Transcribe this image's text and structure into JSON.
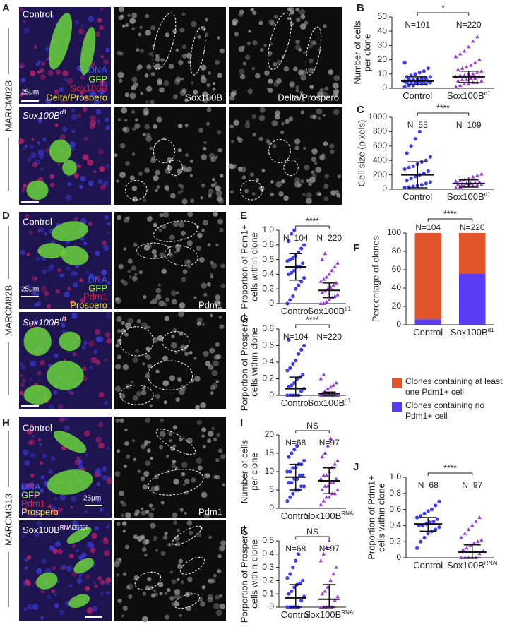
{
  "figure": {
    "letters": [
      "A",
      "B",
      "C",
      "D",
      "E",
      "F",
      "G",
      "H",
      "I",
      "J",
      "K"
    ],
    "A": {
      "genotype_label": "MARCM82B",
      "control": "Control",
      "mutant": "Sox100B",
      "mutant_sup": "d1",
      "legend": [
        "DNA",
        "GFP",
        "Sox100B",
        "Delta/Prospero"
      ],
      "scale": "25μm",
      "channels": [
        "Sox100B",
        "Delta/Prospero"
      ]
    },
    "D": {
      "genotype_label": "MARCM82B",
      "control": "Control",
      "mutant": "Sox100B",
      "mutant_sup": "d1",
      "legend": [
        "DNA",
        "GFP",
        "Pdm1",
        "Prospero"
      ],
      "scale": "25μm",
      "channels": [
        "Pdm1"
      ]
    },
    "H": {
      "genotype_label": "MARCMG13",
      "control": "Control",
      "mutant": "Sox100B",
      "mutant_sup": "RNAi35656",
      "legend": [
        "DNA",
        "GFP",
        "Pdm1",
        "Prospero"
      ],
      "scale": "25μm",
      "channels": [
        "Pdm1"
      ]
    }
  },
  "chart_data": [
    {
      "type": "dot",
      "ylabel": [
        "Number of cells",
        "per clone"
      ],
      "categories": [
        "Control",
        "Sox100B"
      ],
      "sup_labels": [
        null,
        "d1"
      ],
      "ylim": [
        0,
        50
      ],
      "yticks": [
        0,
        10,
        20,
        30,
        40,
        50
      ],
      "significance": "*",
      "groups": [
        {
          "n_label": "N=101",
          "color": "#3c3cf0",
          "mean": 5,
          "error": [
            2.5,
            8
          ],
          "values": [
            1,
            2,
            2,
            3,
            3,
            3,
            4,
            4,
            4,
            4,
            5,
            5,
            5,
            5,
            6,
            6,
            6,
            7,
            7,
            8,
            8,
            9,
            10,
            11,
            12,
            14,
            18
          ]
        },
        {
          "n_label": "N=220",
          "color": "#9b3bd8",
          "mean": 8,
          "error": [
            4,
            12
          ],
          "values": [
            1,
            2,
            3,
            3,
            4,
            4,
            5,
            5,
            6,
            6,
            7,
            7,
            8,
            8,
            9,
            9,
            10,
            10,
            11,
            12,
            13,
            14,
            15,
            16,
            18,
            20,
            22,
            24,
            26,
            29,
            33,
            36
          ]
        }
      ]
    },
    {
      "type": "dot",
      "ylabel": [
        "Cell size (pixels)"
      ],
      "categories": [
        "Control",
        "Sox100B"
      ],
      "sup_labels": [
        null,
        "d1"
      ],
      "ylim": [
        0,
        1000
      ],
      "yticks": [
        0,
        200,
        400,
        600,
        800,
        1000
      ],
      "significance": "****",
      "groups": [
        {
          "n_label": "N=55",
          "color": "#3c3cf0",
          "mean": 200,
          "error": [
            20,
            380
          ],
          "values": [
            20,
            30,
            40,
            50,
            60,
            80,
            100,
            120,
            150,
            180,
            200,
            220,
            250,
            280,
            300,
            320,
            350,
            380,
            400,
            450,
            500,
            600,
            700,
            800
          ]
        },
        {
          "n_label": "N=109",
          "color": "#9b3bd8",
          "mean": 80,
          "error": [
            30,
            130
          ],
          "values": [
            20,
            30,
            40,
            50,
            50,
            60,
            60,
            70,
            70,
            80,
            80,
            90,
            100,
            110,
            120,
            130,
            150,
            170,
            190,
            210
          ]
        }
      ]
    },
    {
      "type": "dot",
      "ylabel": [
        "Proportion of Pdm1+",
        "cells within clone"
      ],
      "categories": [
        "Control",
        "Sox100B"
      ],
      "sup_labels": [
        null,
        "d1"
      ],
      "ylim": [
        0,
        1
      ],
      "yticks": [
        0,
        0.2,
        0.4,
        0.6,
        0.8,
        {
          "value": 1,
          "label": "1.0"
        }
      ],
      "significance": "****",
      "groups": [
        {
          "n_label": "N=104",
          "color": "#3c3cf0",
          "mean": 0.5,
          "error": [
            0.32,
            0.68
          ],
          "values": [
            0,
            0.05,
            0.1,
            0.2,
            0.25,
            0.3,
            0.35,
            0.4,
            0.42,
            0.45,
            0.5,
            0.5,
            0.55,
            0.58,
            0.6,
            0.62,
            0.65,
            0.7,
            0.75,
            0.8,
            0.85,
            0.95,
            1
          ]
        },
        {
          "n_label": "N=220",
          "color": "#9b3bd8",
          "mean": 0.18,
          "error": [
            0.08,
            0.28
          ],
          "values": [
            0,
            0,
            0.02,
            0.05,
            0.08,
            0.1,
            0.12,
            0.15,
            0.17,
            0.2,
            0.22,
            0.25,
            0.28,
            0.3,
            0.33,
            0.36,
            0.4,
            0.45,
            0.5,
            0.55,
            0.6,
            0.68
          ]
        }
      ]
    },
    {
      "type": "stacked_bar",
      "ylabel": [
        "Percentage of clones"
      ],
      "categories": [
        "Control",
        "Sox100B"
      ],
      "sup_labels": [
        null,
        "d1"
      ],
      "ylim": [
        0,
        100
      ],
      "yticks": [
        0,
        20,
        40,
        60,
        80,
        100
      ],
      "significance": "****",
      "n_labels": [
        "N=104",
        "N=220"
      ],
      "series": [
        {
          "name": "Clones containing no Pdm1+ cell",
          "color": "#5a3cf5",
          "values": [
            6,
            56
          ]
        },
        {
          "name": "Clones containing at least one Pdm1+ cell",
          "color": "#e2542a",
          "values": [
            94,
            44
          ]
        }
      ]
    },
    {
      "type": "dot",
      "ylabel": [
        "Porportion of Prospero+",
        "cells within clone"
      ],
      "categories": [
        "Control",
        "Sox100B"
      ],
      "sup_labels": [
        null,
        "d1"
      ],
      "ylim": [
        0,
        0.8
      ],
      "yticks": [
        0,
        0.2,
        0.4,
        0.6,
        0.8
      ],
      "significance": "****",
      "groups": [
        {
          "n_label": "N=104",
          "color": "#3c3cf0",
          "mean": 0.08,
          "error": [
            0,
            0.22
          ],
          "values": [
            0,
            0,
            0,
            0,
            0,
            0.05,
            0.08,
            0.1,
            0.12,
            0.15,
            0.2,
            0.22,
            0.25,
            0.3,
            0.33,
            0.38,
            0.42,
            0.5,
            0.55,
            0.6,
            0.67
          ]
        },
        {
          "n_label": "N=220",
          "color": "#9b3bd8",
          "mean": 0.02,
          "error": [
            0,
            0.04
          ],
          "values": [
            0,
            0,
            0,
            0,
            0,
            0,
            0,
            0.02,
            0.05,
            0.08,
            0.1,
            0.12,
            0.15,
            0.2,
            0.25
          ]
        }
      ]
    },
    {
      "type": "dot",
      "ylabel": [
        "Number of cells",
        "per clone"
      ],
      "categories": [
        "Control",
        "Sox100B"
      ],
      "sup_labels": [
        null,
        "RNAi"
      ],
      "ylim": [
        0,
        20
      ],
      "yticks": [
        0,
        5,
        10,
        15,
        20
      ],
      "significance": "NS",
      "groups": [
        {
          "n_label": "N=68",
          "color": "#3c3cf0",
          "mean": 8.5,
          "error": [
            5,
            12
          ],
          "values": [
            2,
            3,
            4,
            5,
            5,
            6,
            6,
            7,
            7,
            8,
            8,
            9,
            9,
            10,
            10,
            11,
            11,
            12,
            12,
            13,
            14,
            15,
            16,
            17
          ]
        },
        {
          "n_label": "N=97",
          "color": "#9b3bd8",
          "mean": 7.5,
          "error": [
            4,
            11
          ],
          "values": [
            1,
            2,
            3,
            3,
            4,
            4,
            5,
            5,
            6,
            6,
            7,
            7,
            8,
            8,
            9,
            9,
            10,
            11,
            12,
            13,
            14,
            15,
            17,
            19
          ]
        }
      ]
    },
    {
      "type": "dot",
      "ylabel": [
        "Proportion of Pdm1+",
        "cells within clone"
      ],
      "categories": [
        "Control",
        "Sox100B"
      ],
      "sup_labels": [
        null,
        "RNAi"
      ],
      "ylim": [
        0,
        1
      ],
      "yticks": [
        0,
        0.2,
        0.4,
        0.6,
        0.8,
        {
          "value": 1,
          "label": "1.0"
        }
      ],
      "significance": "****",
      "groups": [
        {
          "n_label": "N=68",
          "color": "#3c3cf0",
          "mean": 0.42,
          "error": [
            0.33,
            0.5
          ],
          "values": [
            0.12,
            0.2,
            0.25,
            0.3,
            0.33,
            0.35,
            0.38,
            0.4,
            0.4,
            0.42,
            0.44,
            0.45,
            0.48,
            0.5,
            0.52,
            0.55,
            0.58,
            0.6,
            0.65,
            0.7
          ]
        },
        {
          "n_label": "N=97",
          "color": "#9b3bd8",
          "mean": 0.07,
          "error": [
            0,
            0.16
          ],
          "values": [
            0,
            0,
            0,
            0,
            0,
            0.05,
            0.08,
            0.1,
            0.12,
            0.15,
            0.18,
            0.2,
            0.22,
            0.25,
            0.3,
            0.35,
            0.4,
            0.45,
            0.5
          ]
        }
      ]
    },
    {
      "type": "dot",
      "ylabel": [
        "Porportion of Prospero+",
        "cells within clone"
      ],
      "categories": [
        "Control",
        "Sox100B"
      ],
      "sup_labels": [
        null,
        "RNAi"
      ],
      "ylim": [
        0,
        0.5
      ],
      "yticks": [
        0,
        0.1,
        0.2,
        0.3,
        0.4,
        0.5
      ],
      "significance": "NS",
      "groups": [
        {
          "n_label": "N=68",
          "color": "#3c3cf0",
          "mean": 0.07,
          "error": [
            0,
            0.17
          ],
          "values": [
            0,
            0,
            0,
            0,
            0,
            0.05,
            0.08,
            0.1,
            0.12,
            0.15,
            0.17,
            0.18,
            0.2,
            0.22,
            0.25,
            0.3,
            0.35,
            0.4
          ]
        },
        {
          "n_label": "N=97",
          "color": "#9b3bd8",
          "mean": 0.06,
          "error": [
            0,
            0.17
          ],
          "values": [
            0,
            0,
            0,
            0,
            0,
            0.05,
            0.08,
            0.1,
            0.12,
            0.15,
            0.2,
            0.25,
            0.3,
            0.35,
            0.4,
            0.45,
            0.5
          ]
        }
      ]
    }
  ]
}
